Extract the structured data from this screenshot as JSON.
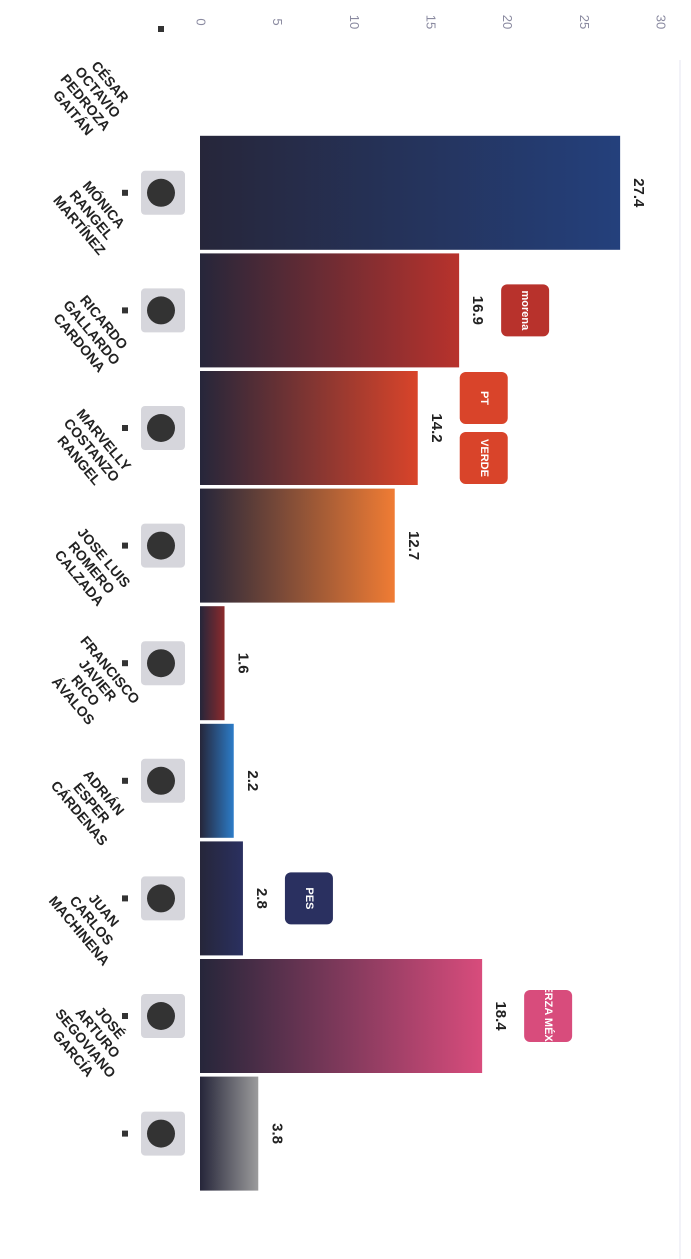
{
  "chart_data": {
    "type": "bar",
    "orientation": "horizontal",
    "categories": [
      [
        "CÉSAR",
        "OCTAVIO",
        "PEDROZA",
        "GAITÁN"
      ],
      [
        "MÓNICA",
        "RANGEL",
        "MARTÍNEZ"
      ],
      [
        "RICARDO",
        "GALLARDO",
        "CARDONA"
      ],
      [
        "MARVELLY",
        "COSTANZO",
        "RANGEL"
      ],
      [
        "JOSE LUIS",
        "ROMERO",
        "CALZADA"
      ],
      [
        "FRANCISCO",
        "JAVIER",
        "RICO",
        "ÁVALOS"
      ],
      [
        "ADRIÁN",
        "ESPER",
        "CÁRDENAS"
      ],
      [
        "JUAN",
        "CARLOS",
        "MACHINENA"
      ],
      [
        "JOSÉ",
        "ARTURO",
        "SEGOVIANO",
        "GARCÍA"
      ]
    ],
    "values": [
      27.4,
      16.9,
      14.2,
      12.7,
      1.6,
      2.2,
      2.8,
      18.4,
      3.8
    ],
    "colors": [
      "#24407c",
      "#b8322c",
      "#d9442a",
      "#f07c34",
      "#8c2a2c",
      "#2c7cc8",
      "#2a3060",
      "#d84c7c",
      "#9c9c9c"
    ],
    "logos": [
      [],
      [
        "morena"
      ],
      [
        "PT",
        "VERDE"
      ],
      [],
      [],
      [],
      [
        "PES"
      ],
      [
        "FUERZA MÉXICO"
      ],
      []
    ],
    "xlim": [
      0,
      30
    ],
    "xticks": [
      0,
      5,
      10,
      15,
      20,
      25,
      30
    ]
  }
}
